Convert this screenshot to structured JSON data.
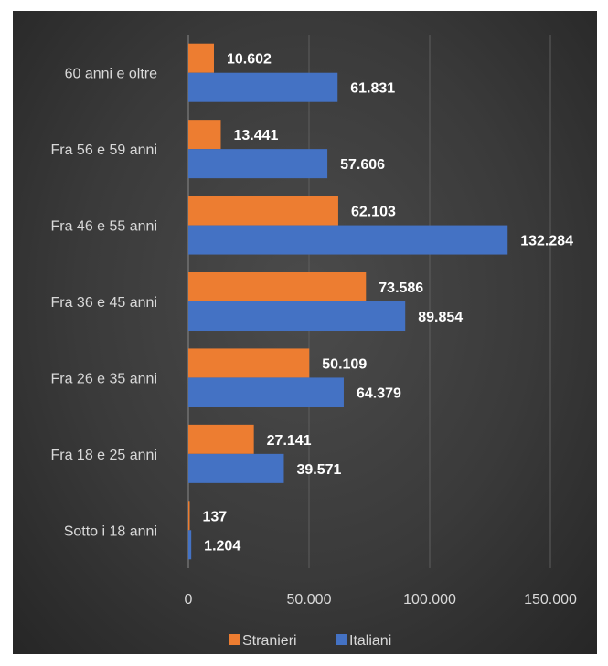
{
  "chart_data": {
    "type": "bar",
    "orientation": "horizontal",
    "title": "",
    "xlabel": "",
    "ylabel": "",
    "categories": [
      "60 anni e oltre",
      "Fra 56 e 59 anni",
      "Fra 46 e 55 anni",
      "Fra 36 e 45 anni",
      "Fra 26 e 35 anni",
      "Fra 18 e 25 anni",
      "Sotto i 18 anni"
    ],
    "series": [
      {
        "name": "Stranieri",
        "color": "#ed7d31",
        "values": [
          10602,
          13441,
          62103,
          73586,
          50109,
          27141,
          137
        ],
        "labels": [
          "10.602",
          "13.441",
          "62.103",
          "73.586",
          "50.109",
          "27.141",
          "137"
        ]
      },
      {
        "name": "Italiani",
        "color": "#4472c4",
        "values": [
          61831,
          57606,
          132284,
          89854,
          64379,
          39571,
          1204
        ],
        "labels": [
          "61.831",
          "57.606",
          "132.284",
          "89.854",
          "64.379",
          "39.571",
          "1.204"
        ]
      }
    ],
    "xlim": [
      0,
      150000
    ],
    "xticks": [
      0,
      50000,
      100000,
      150000
    ],
    "xtick_labels": [
      "0",
      "50.000",
      "100.000",
      "150.000"
    ],
    "grid": true,
    "legend_position": "bottom"
  }
}
